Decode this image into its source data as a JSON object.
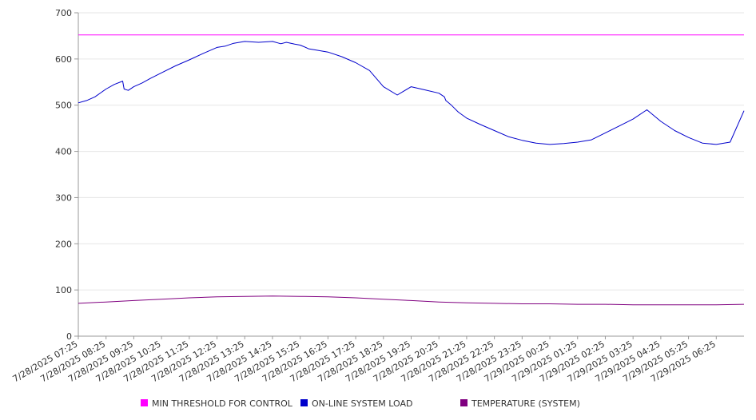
{
  "chart_data": {
    "type": "line",
    "title": "",
    "xlabel": "",
    "ylabel": "",
    "ylim": [
      0,
      700
    ],
    "y_ticks": [
      0,
      100,
      200,
      300,
      400,
      500,
      600,
      700
    ],
    "grid": true,
    "legend_position": "bottom",
    "x_tick_labels": [
      "7/28/2025 07:25",
      "7/28/2025 08:25",
      "7/28/2025 09:25",
      "7/28/2025 10:25",
      "7/28/2025 11:25",
      "7/28/2025 12:25",
      "7/28/2025 13:25",
      "7/28/2025 14:25",
      "7/28/2025 15:25",
      "7/28/2025 16:25",
      "7/28/2025 17:25",
      "7/28/2025 18:25",
      "7/28/2025 19:25",
      "7/28/2025 20:25",
      "7/28/2025 21:25",
      "7/28/2025 22:25",
      "7/28/2025 23:25",
      "7/29/2025 00:25",
      "7/29/2025 01:25",
      "7/29/2025 02:25",
      "7/29/2025 03:25",
      "7/29/2025 04:25",
      "7/29/2025 05:25",
      "7/29/2025 06:25"
    ],
    "x_extent_hours": 24.0,
    "series": [
      {
        "name": "MIN THRESHOLD FOR CONTROL",
        "color": "#ff00ff",
        "x": [
          0,
          24
        ],
        "values": [
          652,
          652
        ]
      },
      {
        "name": "ON-LINE SYSTEM LOAD",
        "color": "#0000cc",
        "x": [
          0,
          0.3,
          0.6,
          1.0,
          1.3,
          1.6,
          1.65,
          1.8,
          2.0,
          2.3,
          2.6,
          3.0,
          3.5,
          4.0,
          4.5,
          5.0,
          5.3,
          5.6,
          6.0,
          6.5,
          7.0,
          7.3,
          7.5,
          7.8,
          8.0,
          8.2,
          8.3,
          8.5,
          9.0,
          9.5,
          10.0,
          10.5,
          11.0,
          11.5,
          12.0,
          12.5,
          13.0,
          13.2,
          13.25,
          13.35,
          13.45,
          13.55,
          13.7,
          14.0,
          14.5,
          15.0,
          15.5,
          16.0,
          16.5,
          17.0,
          17.5,
          18.0,
          18.5,
          19.0,
          19.5,
          20.0,
          20.5,
          21.0,
          21.5,
          22.0,
          22.5,
          23.0,
          23.5,
          24.0
        ],
        "values": [
          505,
          510,
          518,
          535,
          545,
          552,
          535,
          532,
          540,
          548,
          558,
          570,
          585,
          598,
          612,
          625,
          628,
          634,
          638,
          636,
          638,
          633,
          636,
          632,
          630,
          625,
          622,
          620,
          615,
          605,
          592,
          575,
          540,
          522,
          540,
          533,
          526,
          518,
          510,
          505,
          500,
          494,
          485,
          472,
          458,
          445,
          432,
          424,
          418,
          415,
          417,
          420,
          425,
          440,
          455,
          470,
          490,
          465,
          445,
          430,
          418,
          415,
          420,
          488
        ]
      },
      {
        "name": "TEMPERATURE (SYSTEM)",
        "color": "#800080",
        "x": [
          0,
          1,
          2,
          3,
          4,
          5,
          6,
          7,
          8,
          9,
          10,
          11,
          12,
          13,
          14,
          15,
          16,
          17,
          18,
          19,
          20,
          21,
          22,
          23,
          24
        ],
        "values": [
          71,
          74,
          77,
          80,
          83,
          85,
          86,
          87,
          86,
          85,
          83,
          80,
          77,
          74,
          72,
          71,
          70,
          70,
          69,
          69,
          68,
          68,
          68,
          68,
          69
        ]
      }
    ]
  }
}
